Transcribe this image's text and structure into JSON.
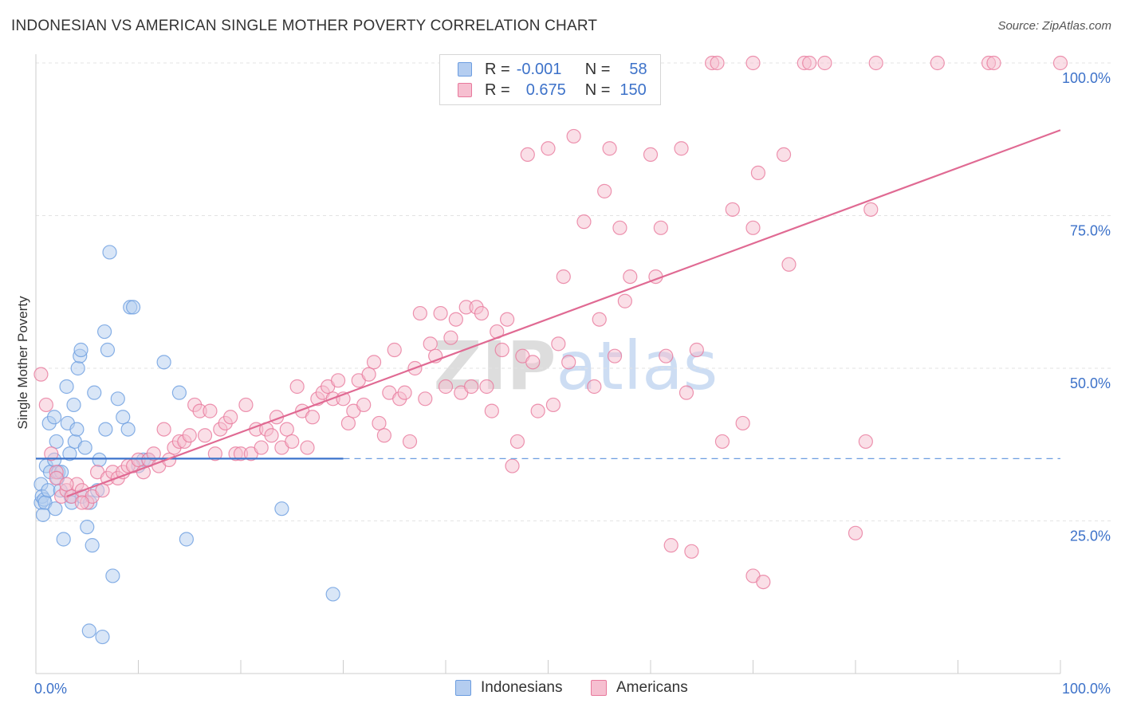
{
  "title": "INDONESIAN VS AMERICAN SINGLE MOTHER POVERTY CORRELATION CHART",
  "source": "Source: ZipAtlas.com",
  "watermark": "ZIPatlas",
  "chart_data": {
    "type": "scatter",
    "xlabel": "",
    "ylabel": "Single Mother Poverty",
    "xlim": [
      0,
      1
    ],
    "ylim": [
      0,
      1
    ],
    "x_tick_labels": [
      "0.0%",
      "100.0%"
    ],
    "y_tick_labels": [
      "25.0%",
      "50.0%",
      "75.0%",
      "100.0%"
    ],
    "y_ticks": [
      0.25,
      0.5,
      0.75,
      1.0
    ],
    "grid": true,
    "legend": {
      "placement": "top-center",
      "rows": [
        {
          "r_label": "R =",
          "r_value": "-0.001",
          "n_label": "N =",
          "n_value": "58"
        },
        {
          "r_label": "R =",
          "r_value": "0.675",
          "n_label": "N =",
          "n_value": "150"
        }
      ]
    },
    "series": [
      {
        "name": "Indonesians",
        "color": "#6c9de0",
        "fill": "#b4cdf0",
        "trend": {
          "x0": 0.0,
          "y0": 0.352,
          "x1": 0.3,
          "y1": 0.352,
          "dashed_to": 1.0
        },
        "points": [
          [
            0.005,
            0.28
          ],
          [
            0.005,
            0.31
          ],
          [
            0.006,
            0.29
          ],
          [
            0.007,
            0.26
          ],
          [
            0.008,
            0.285
          ],
          [
            0.009,
            0.28
          ],
          [
            0.01,
            0.34
          ],
          [
            0.012,
            0.3
          ],
          [
            0.013,
            0.41
          ],
          [
            0.014,
            0.33
          ],
          [
            0.018,
            0.35
          ],
          [
            0.019,
            0.27
          ],
          [
            0.02,
            0.38
          ],
          [
            0.021,
            0.32
          ],
          [
            0.022,
            0.33
          ],
          [
            0.024,
            0.3
          ],
          [
            0.025,
            0.33
          ],
          [
            0.027,
            0.22
          ],
          [
            0.03,
            0.47
          ],
          [
            0.031,
            0.41
          ],
          [
            0.033,
            0.36
          ],
          [
            0.034,
            0.29
          ],
          [
            0.035,
            0.28
          ],
          [
            0.037,
            0.44
          ],
          [
            0.038,
            0.38
          ],
          [
            0.04,
            0.4
          ],
          [
            0.041,
            0.5
          ],
          [
            0.043,
            0.52
          ],
          [
            0.044,
            0.53
          ],
          [
            0.045,
            0.29
          ],
          [
            0.048,
            0.37
          ],
          [
            0.05,
            0.24
          ],
          [
            0.052,
            0.07
          ],
          [
            0.053,
            0.28
          ],
          [
            0.055,
            0.21
          ],
          [
            0.057,
            0.46
          ],
          [
            0.06,
            0.3
          ],
          [
            0.062,
            0.35
          ],
          [
            0.065,
            0.06
          ],
          [
            0.067,
            0.56
          ],
          [
            0.068,
            0.4
          ],
          [
            0.07,
            0.53
          ],
          [
            0.072,
            0.69
          ],
          [
            0.075,
            0.16
          ],
          [
            0.08,
            0.45
          ],
          [
            0.085,
            0.42
          ],
          [
            0.09,
            0.4
          ],
          [
            0.092,
            0.6
          ],
          [
            0.095,
            0.6
          ],
          [
            0.1,
            0.34
          ],
          [
            0.105,
            0.35
          ],
          [
            0.11,
            0.35
          ],
          [
            0.125,
            0.51
          ],
          [
            0.14,
            0.46
          ],
          [
            0.147,
            0.22
          ],
          [
            0.24,
            0.27
          ],
          [
            0.29,
            0.13
          ],
          [
            0.018,
            0.42
          ]
        ]
      },
      {
        "name": "Americans",
        "color": "#e8799c",
        "fill": "#f6bfd0",
        "trend": {
          "x0": 0.03,
          "y0": 0.29,
          "x1": 1.0,
          "y1": 0.89
        },
        "points": [
          [
            0.005,
            0.49
          ],
          [
            0.01,
            0.44
          ],
          [
            0.015,
            0.36
          ],
          [
            0.02,
            0.33
          ],
          [
            0.025,
            0.29
          ],
          [
            0.03,
            0.3
          ],
          [
            0.035,
            0.29
          ],
          [
            0.04,
            0.31
          ],
          [
            0.045,
            0.3
          ],
          [
            0.05,
            0.28
          ],
          [
            0.055,
            0.29
          ],
          [
            0.06,
            0.33
          ],
          [
            0.065,
            0.3
          ],
          [
            0.07,
            0.32
          ],
          [
            0.075,
            0.33
          ],
          [
            0.08,
            0.32
          ],
          [
            0.085,
            0.33
          ],
          [
            0.09,
            0.34
          ],
          [
            0.095,
            0.34
          ],
          [
            0.1,
            0.35
          ],
          [
            0.105,
            0.33
          ],
          [
            0.11,
            0.35
          ],
          [
            0.115,
            0.36
          ],
          [
            0.12,
            0.34
          ],
          [
            0.125,
            0.4
          ],
          [
            0.13,
            0.35
          ],
          [
            0.135,
            0.37
          ],
          [
            0.14,
            0.38
          ],
          [
            0.145,
            0.38
          ],
          [
            0.15,
            0.39
          ],
          [
            0.155,
            0.44
          ],
          [
            0.16,
            0.43
          ],
          [
            0.165,
            0.39
          ],
          [
            0.17,
            0.43
          ],
          [
            0.175,
            0.36
          ],
          [
            0.18,
            0.4
          ],
          [
            0.185,
            0.41
          ],
          [
            0.19,
            0.42
          ],
          [
            0.195,
            0.36
          ],
          [
            0.2,
            0.36
          ],
          [
            0.205,
            0.44
          ],
          [
            0.21,
            0.36
          ],
          [
            0.215,
            0.4
          ],
          [
            0.22,
            0.37
          ],
          [
            0.225,
            0.4
          ],
          [
            0.23,
            0.39
          ],
          [
            0.235,
            0.42
          ],
          [
            0.24,
            0.37
          ],
          [
            0.245,
            0.4
          ],
          [
            0.25,
            0.38
          ],
          [
            0.255,
            0.47
          ],
          [
            0.26,
            0.43
          ],
          [
            0.265,
            0.37
          ],
          [
            0.27,
            0.42
          ],
          [
            0.275,
            0.45
          ],
          [
            0.28,
            0.46
          ],
          [
            0.285,
            0.47
          ],
          [
            0.29,
            0.45
          ],
          [
            0.295,
            0.48
          ],
          [
            0.3,
            0.45
          ],
          [
            0.305,
            0.41
          ],
          [
            0.31,
            0.43
          ],
          [
            0.315,
            0.48
          ],
          [
            0.32,
            0.44
          ],
          [
            0.325,
            0.49
          ],
          [
            0.33,
            0.51
          ],
          [
            0.335,
            0.41
          ],
          [
            0.34,
            0.39
          ],
          [
            0.345,
            0.46
          ],
          [
            0.35,
            0.53
          ],
          [
            0.355,
            0.45
          ],
          [
            0.36,
            0.46
          ],
          [
            0.365,
            0.38
          ],
          [
            0.37,
            0.5
          ],
          [
            0.375,
            0.59
          ],
          [
            0.38,
            0.45
          ],
          [
            0.385,
            0.54
          ],
          [
            0.39,
            0.52
          ],
          [
            0.395,
            0.59
          ],
          [
            0.4,
            0.47
          ],
          [
            0.405,
            0.55
          ],
          [
            0.41,
            0.58
          ],
          [
            0.415,
            0.46
          ],
          [
            0.42,
            0.6
          ],
          [
            0.425,
            0.47
          ],
          [
            0.43,
            0.6
          ],
          [
            0.435,
            0.59
          ],
          [
            0.44,
            0.47
          ],
          [
            0.445,
            0.43
          ],
          [
            0.45,
            0.56
          ],
          [
            0.455,
            0.53
          ],
          [
            0.46,
            0.58
          ],
          [
            0.465,
            0.34
          ],
          [
            0.47,
            0.38
          ],
          [
            0.475,
            0.52
          ],
          [
            0.48,
            0.85
          ],
          [
            0.485,
            0.51
          ],
          [
            0.49,
            0.43
          ],
          [
            0.5,
            0.86
          ],
          [
            0.505,
            0.44
          ],
          [
            0.51,
            0.54
          ],
          [
            0.515,
            0.65
          ],
          [
            0.52,
            0.51
          ],
          [
            0.525,
            0.88
          ],
          [
            0.53,
            1.0
          ],
          [
            0.535,
            0.74
          ],
          [
            0.54,
            1.0
          ],
          [
            0.545,
            0.47
          ],
          [
            0.55,
            0.58
          ],
          [
            0.555,
            0.79
          ],
          [
            0.56,
            0.86
          ],
          [
            0.565,
            0.52
          ],
          [
            0.57,
            0.73
          ],
          [
            0.575,
            0.61
          ],
          [
            0.58,
            0.65
          ],
          [
            0.6,
            0.85
          ],
          [
            0.605,
            0.65
          ],
          [
            0.61,
            0.73
          ],
          [
            0.615,
            0.52
          ],
          [
            0.62,
            0.21
          ],
          [
            0.63,
            0.86
          ],
          [
            0.635,
            0.46
          ],
          [
            0.64,
            0.2
          ],
          [
            0.645,
            0.53
          ],
          [
            0.66,
            1.0
          ],
          [
            0.665,
            1.0
          ],
          [
            0.67,
            0.38
          ],
          [
            0.68,
            0.76
          ],
          [
            0.69,
            0.41
          ],
          [
            0.7,
            0.73
          ],
          [
            0.7,
            1.0
          ],
          [
            0.7,
            0.16
          ],
          [
            0.705,
            0.82
          ],
          [
            0.71,
            0.15
          ],
          [
            0.73,
            0.85
          ],
          [
            0.735,
            0.67
          ],
          [
            0.75,
            1.0
          ],
          [
            0.755,
            1.0
          ],
          [
            0.77,
            1.0
          ],
          [
            0.8,
            0.23
          ],
          [
            0.81,
            0.38
          ],
          [
            0.815,
            0.76
          ],
          [
            0.82,
            1.0
          ],
          [
            0.88,
            1.0
          ],
          [
            0.93,
            1.0
          ],
          [
            0.935,
            1.0
          ],
          [
            1.0,
            1.0
          ],
          [
            0.02,
            0.32
          ],
          [
            0.03,
            0.31
          ],
          [
            0.045,
            0.28
          ]
        ]
      }
    ]
  },
  "bottom_legend": [
    "Indonesians",
    "Americans"
  ]
}
